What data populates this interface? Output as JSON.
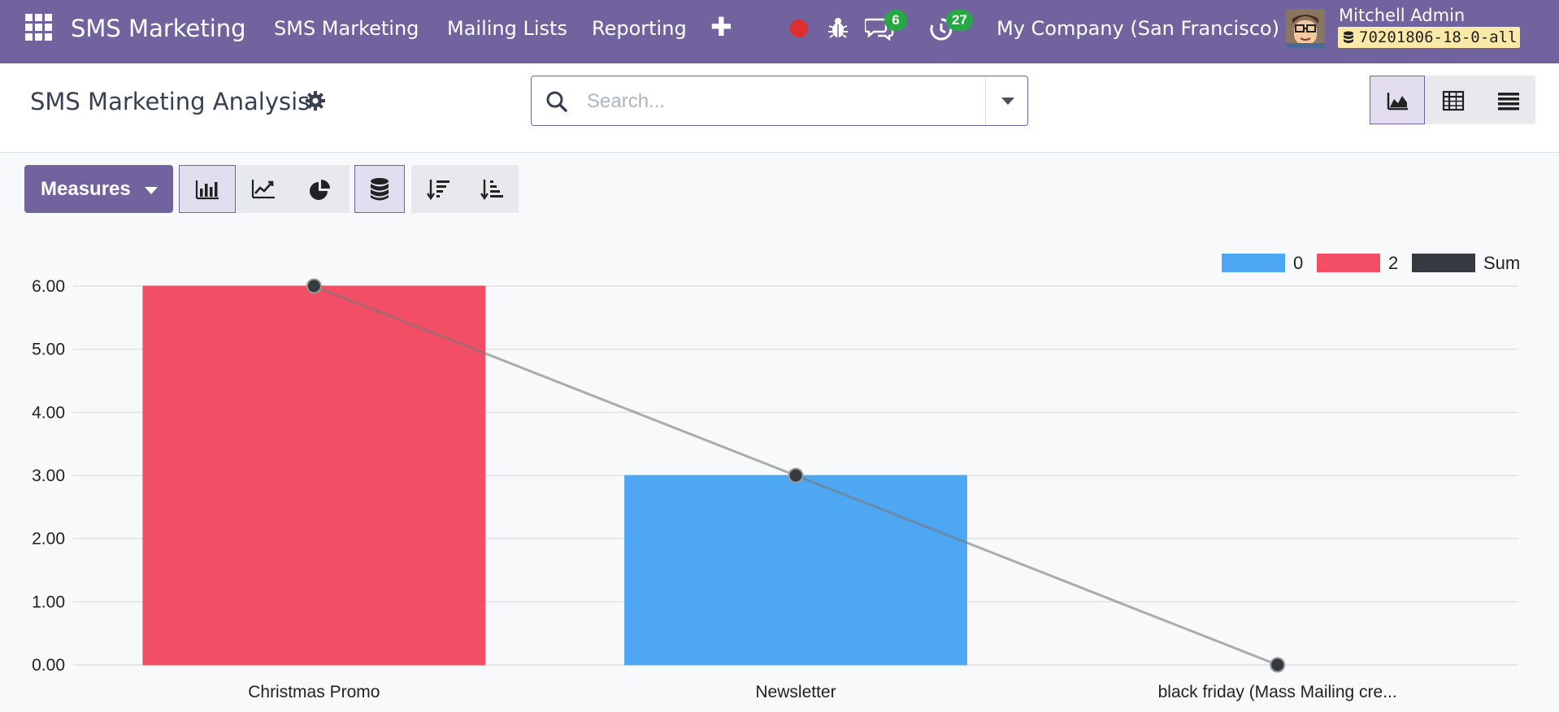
{
  "navbar": {
    "brand": "SMS Marketing",
    "menu": [
      "SMS Marketing",
      "Mailing Lists",
      "Reporting"
    ],
    "messages_badge": "6",
    "activities_badge": "27",
    "company": "My Company (San Francisco)",
    "user_name": "Mitchell Admin",
    "database": "70201806-18-0-all"
  },
  "control_panel": {
    "title": "SMS Marketing Analysis",
    "search_placeholder": "Search...",
    "views": [
      "graph",
      "pivot",
      "list"
    ],
    "active_view": "graph"
  },
  "toolbar": {
    "measures_label": "Measures",
    "chart_types": [
      "bar",
      "line",
      "pie"
    ],
    "active_chart_type": "bar",
    "stacked": true
  },
  "colors": {
    "navbar": "#71639e",
    "series_0": "#4ea7f2",
    "series_2": "#f24e66",
    "sum": "#343a40"
  },
  "chart_data": {
    "type": "bar",
    "categories": [
      "Christmas Promo",
      "Newsletter",
      "black friday (Mass Mailing cre..."
    ],
    "series": [
      {
        "name": "0",
        "values": [
          0,
          3,
          0
        ],
        "color": "#4ea7f2"
      },
      {
        "name": "2",
        "values": [
          6,
          0,
          0
        ],
        "color": "#f24e66"
      }
    ],
    "sum_line": {
      "name": "Sum",
      "values": [
        6,
        3,
        0
      ],
      "color": "#343a40"
    },
    "legend": [
      "0",
      "2",
      "Sum"
    ],
    "legend_position": "top-right",
    "y_ticks": [
      "0.00",
      "1.00",
      "2.00",
      "3.00",
      "4.00",
      "5.00",
      "6.00"
    ],
    "ylim": [
      0,
      6
    ],
    "grid": true,
    "stacked": true
  }
}
